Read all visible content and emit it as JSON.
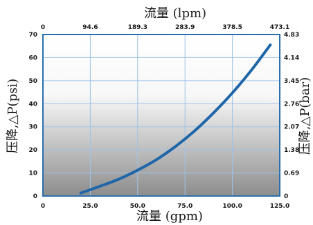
{
  "chart_data": {
    "type": "line",
    "x_bottom": {
      "label": "流量 (gpm)",
      "ticks": [
        "0",
        "25.0",
        "50.0",
        "75.0",
        "100.0",
        "125.0"
      ],
      "range": [
        0,
        125
      ]
    },
    "x_top": {
      "label": "流量 (lpm)",
      "ticks": [
        "0",
        "94.6",
        "189.3",
        "283.9",
        "378.5",
        "473.1"
      ],
      "range": [
        0,
        473.1
      ]
    },
    "y_left": {
      "label": "压降,△P(psi)",
      "ticks": [
        "0",
        "10",
        "20",
        "30",
        "40",
        "50",
        "60",
        "70"
      ],
      "range": [
        0,
        70
      ]
    },
    "y_right": {
      "label": "压降,△P(bar)",
      "ticks": [
        "0",
        "0.69",
        "1.38",
        "2.07",
        "2.76",
        "3.45",
        "4.14",
        "4.83"
      ],
      "range": [
        0,
        4.83
      ]
    },
    "grid": true,
    "series": [
      {
        "color": "#1f66a8",
        "x": [
          20,
          30,
          40,
          50,
          60,
          70,
          80,
          90,
          100,
          110,
          120
        ],
        "y": [
          1.3,
          4.2,
          7.3,
          11.2,
          15.8,
          21.5,
          28.2,
          36.0,
          44.7,
          54.5,
          65.5
        ]
      }
    ],
    "colors": {
      "plot_top": "#ffffff",
      "plot_bottom": "#8d8d8d",
      "grid": "#9ec3e8",
      "frame": "#2b6fae",
      "curve": "#1f66a8"
    }
  }
}
